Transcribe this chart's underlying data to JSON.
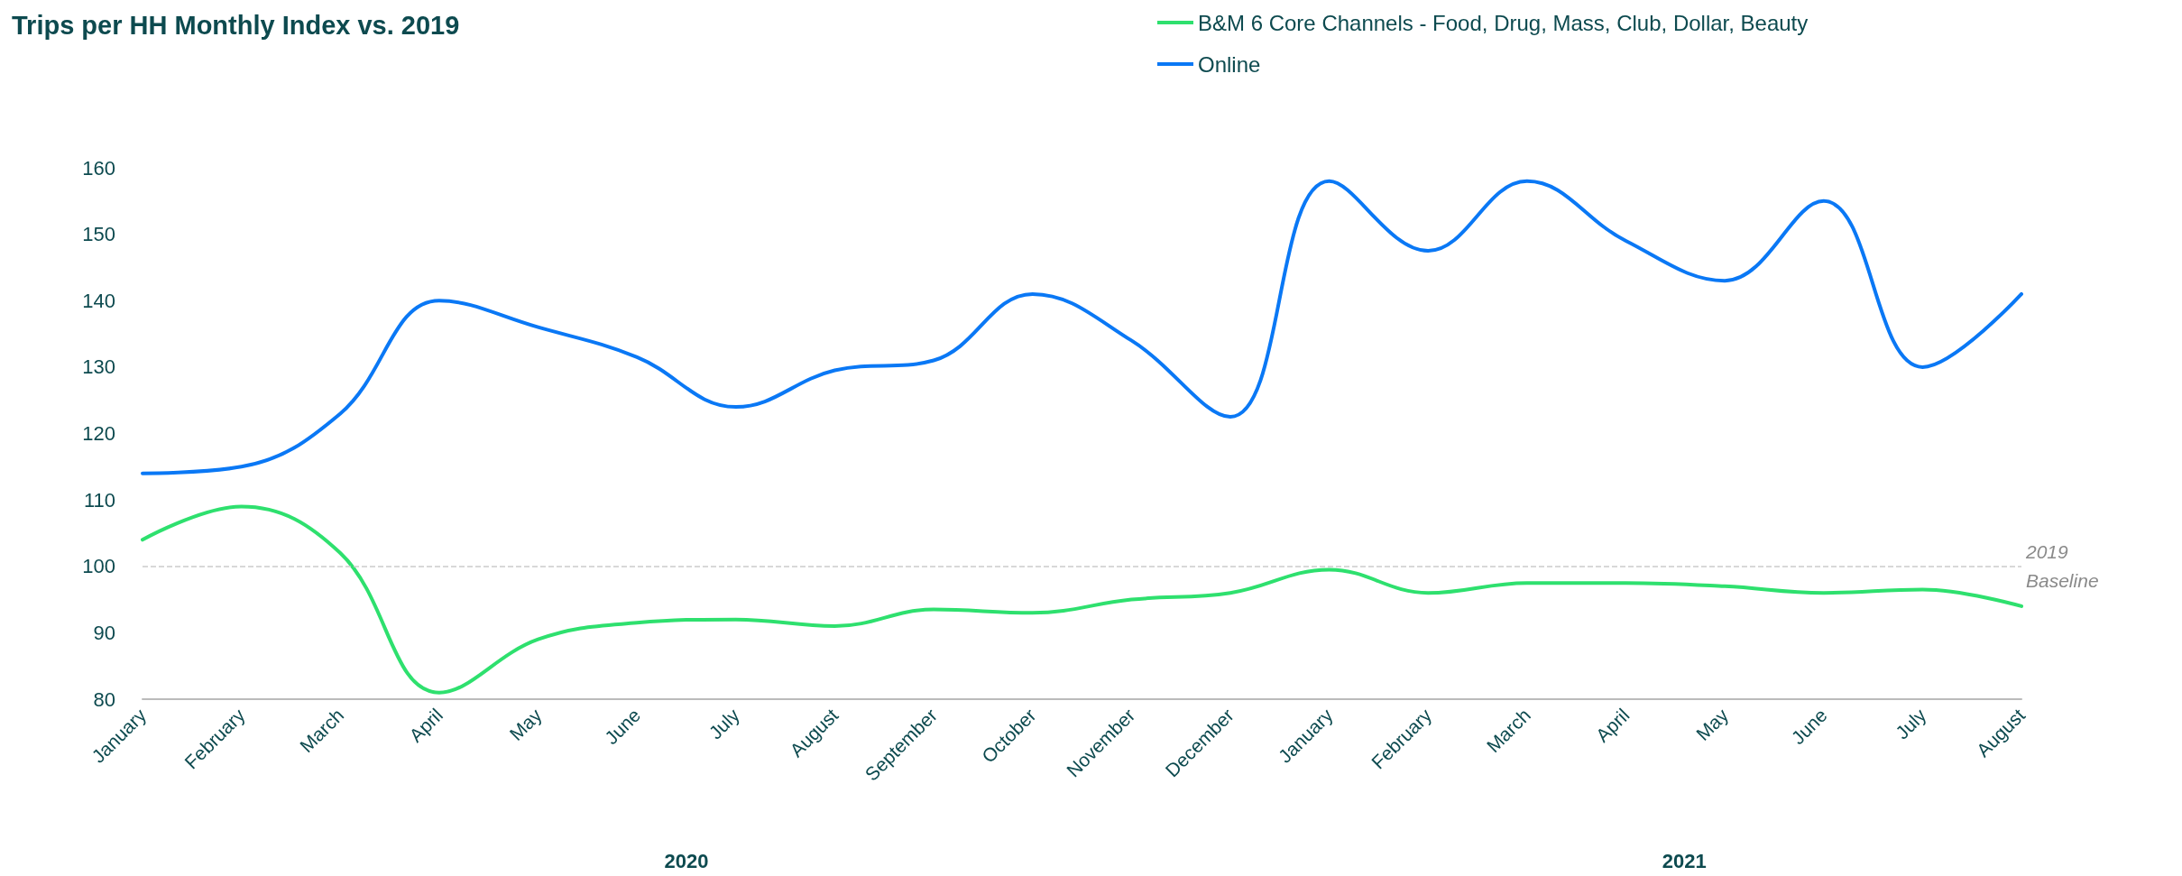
{
  "chart_data": {
    "type": "line",
    "title": "Trips per HH Monthly Index vs. 2019",
    "categories": [
      "January",
      "February",
      "March",
      "April",
      "May",
      "June",
      "July",
      "August",
      "September",
      "October",
      "November",
      "December",
      "January",
      "February",
      "March",
      "April",
      "May",
      "June",
      "July",
      "August"
    ],
    "series": [
      {
        "name": "B&M 6 Core Channels - Food, Drug, Mass, Club, Dollar, Beauty",
        "color": "#2ee06e",
        "values": [
          104,
          109,
          102,
          81,
          89,
          91.5,
          92,
          91,
          93.5,
          93,
          95,
          96,
          99.5,
          96,
          97.5,
          97.5,
          97,
          96,
          96.5,
          94
        ]
      },
      {
        "name": "Online",
        "color": "#0a78f5",
        "values": [
          114,
          115,
          123,
          140,
          136,
          131.5,
          124,
          129.5,
          131,
          141,
          134,
          122.5,
          158,
          147.5,
          158,
          149,
          143,
          155,
          130,
          141
        ]
      }
    ],
    "ylim": [
      80,
      160
    ],
    "yticks": [
      80,
      90,
      100,
      110,
      120,
      130,
      140,
      150,
      160
    ],
    "ref_lines": [
      {
        "axis": "y",
        "value": 100,
        "label": "2019 Baseline",
        "color": "#cccccc",
        "line_style": "dashed"
      }
    ],
    "annotations": [
      "2020",
      "2021"
    ],
    "legend": "top right",
    "grid": false,
    "marker": "none",
    "line_style": "solid"
  }
}
